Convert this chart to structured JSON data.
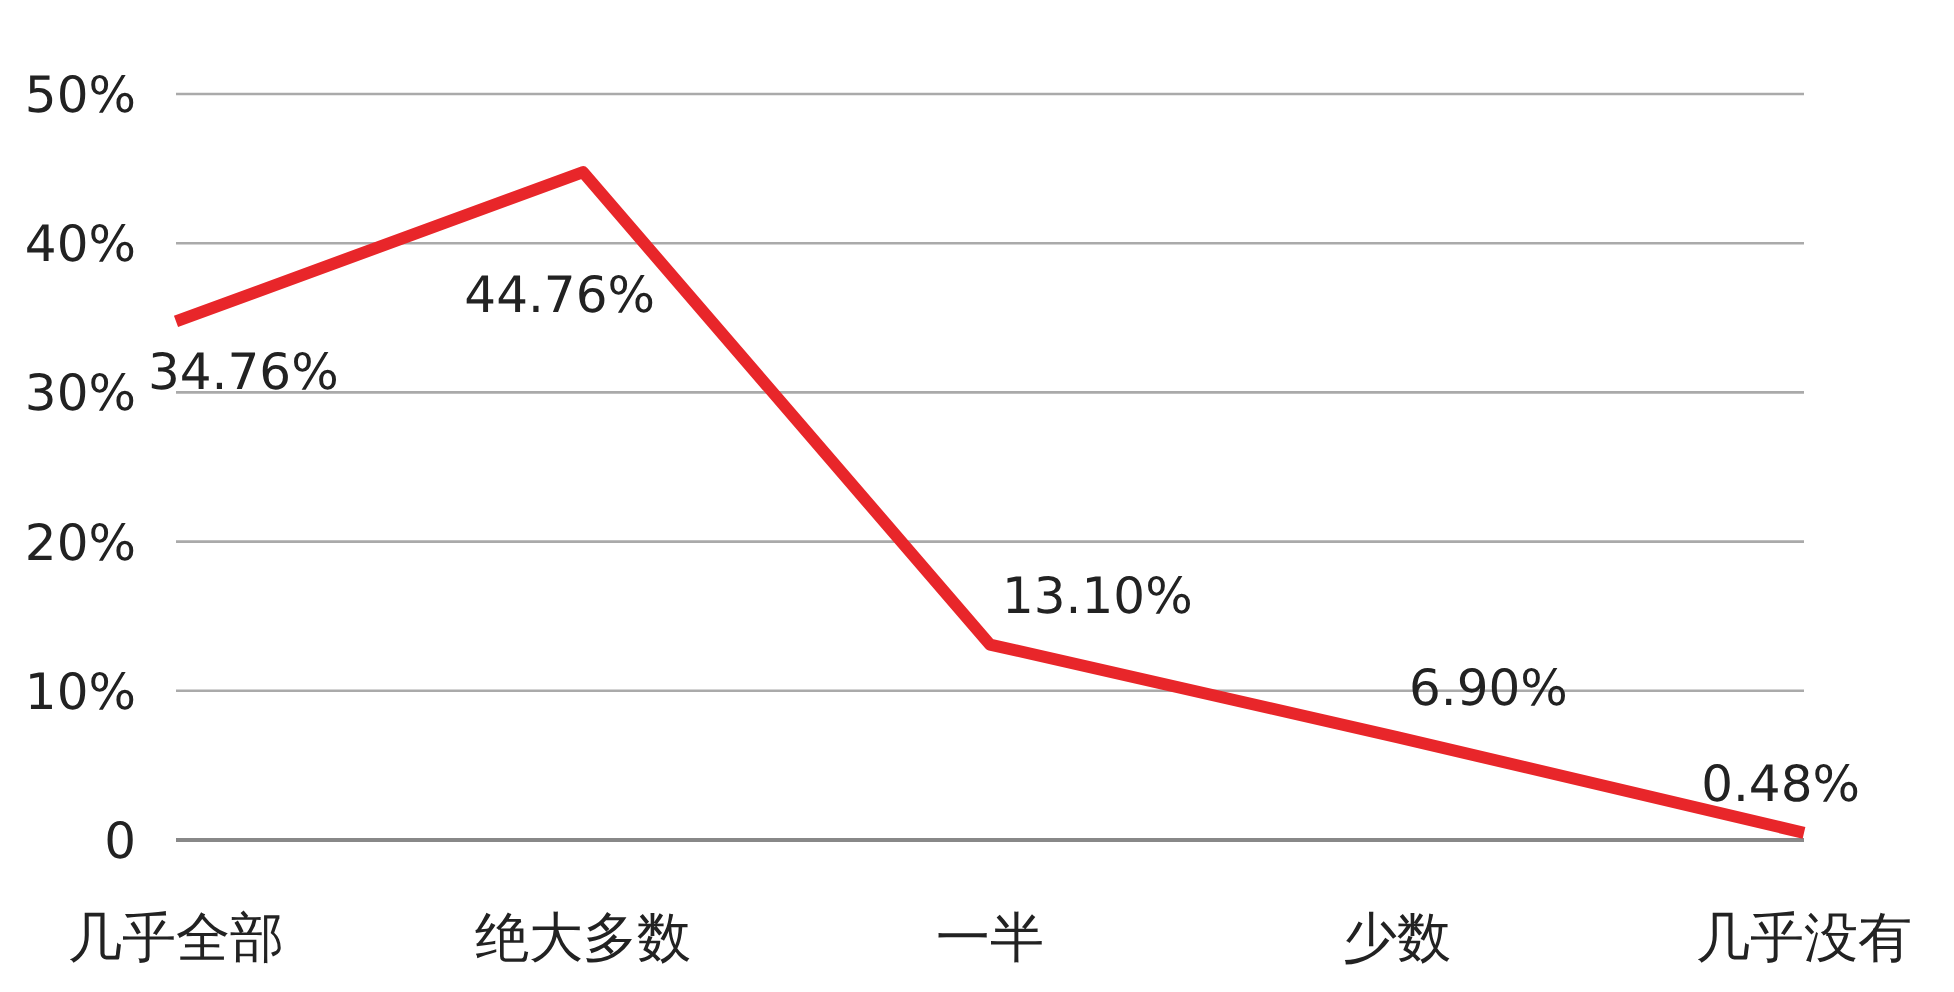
{
  "chart_data": {
    "type": "line",
    "categories": [
      "几乎全部",
      "绝大多数",
      "一半",
      "少数",
      "几乎没有"
    ],
    "series": [
      {
        "color": "#e8262a",
        "values": [
          34.76,
          44.76,
          13.1,
          6.9,
          0.48
        ],
        "value_labels": [
          "34.76%",
          "44.76%",
          "13.10%",
          "6.90%",
          "0.48%"
        ]
      }
    ],
    "ylim": [
      0,
      50
    ],
    "yticks": [
      {
        "value": 0,
        "label": "0"
      },
      {
        "value": 10,
        "label": "10%"
      },
      {
        "value": 20,
        "label": "20%"
      },
      {
        "value": 30,
        "label": "30%"
      },
      {
        "value": 40,
        "label": "40%"
      },
      {
        "value": 50,
        "label": "50%"
      }
    ],
    "grid": "y",
    "marker": "none",
    "line_style": "solid"
  }
}
